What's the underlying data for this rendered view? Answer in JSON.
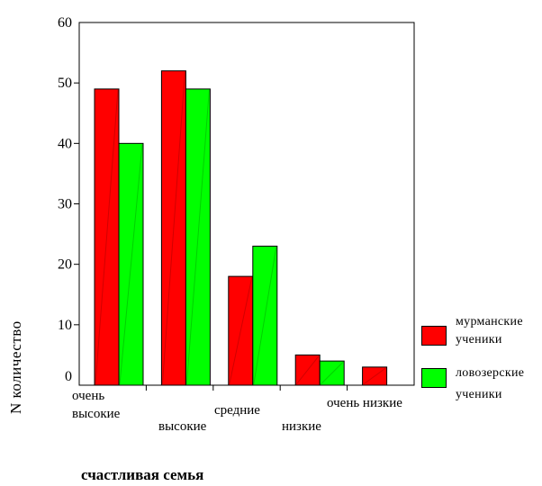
{
  "chart_data": {
    "type": "bar",
    "title": "",
    "xlabel": "счастливая семья",
    "ylabel": "N количество",
    "ylim": [
      0,
      60
    ],
    "yticks": [
      "0",
      "10",
      "20",
      "30",
      "40",
      "50",
      "60"
    ],
    "categories": [
      "очень высокие",
      "высокие",
      "средние",
      "низкие",
      "очень низкие"
    ],
    "category_label_lines": [
      [
        "очень",
        "высокие"
      ],
      [
        "высокие"
      ],
      [
        "средние"
      ],
      [
        "низкие"
      ],
      [
        "очень низкие"
      ]
    ],
    "series": [
      {
        "name": "мурманские ученики",
        "name_lines": [
          "мурманские",
          "ученики"
        ],
        "color": "#ff0000",
        "values": [
          49,
          52,
          18,
          5,
          3
        ]
      },
      {
        "name": "ловозерские ученики",
        "name_lines": [
          "ловозерские",
          "ученики"
        ],
        "color": "#00ff00",
        "values": [
          40,
          49,
          23,
          4,
          0
        ]
      }
    ],
    "grid": false,
    "legend": "right"
  }
}
